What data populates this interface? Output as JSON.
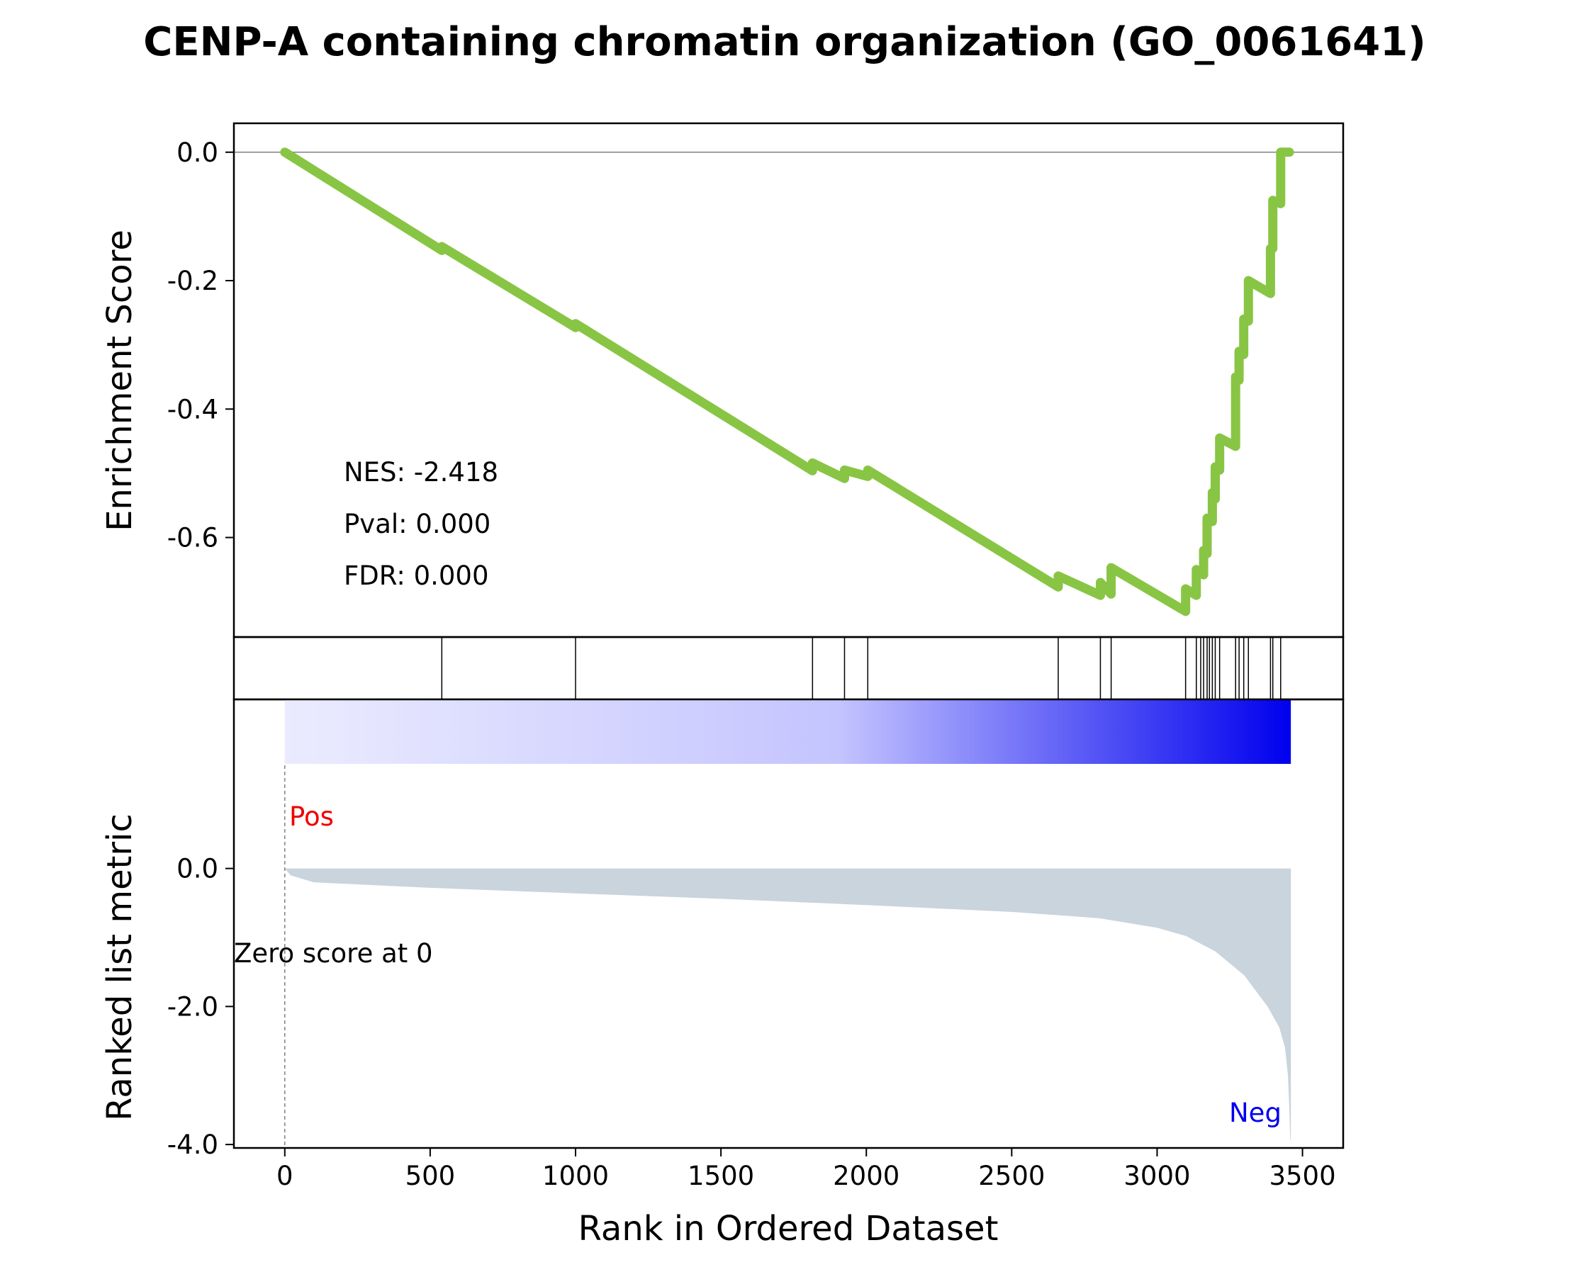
{
  "chart_data": {
    "type": "line",
    "title": "CENP-A containing chromatin organization (GO_0061641)",
    "xlabel": "Rank in Ordered Dataset",
    "xlim": [
      -175,
      3640
    ],
    "x_ticks": [
      0,
      500,
      1000,
      1500,
      2000,
      2500,
      3000,
      3500
    ],
    "x_tick_labels": [
      "0",
      "500",
      "1000",
      "1500",
      "2000",
      "2500",
      "3000",
      "3500"
    ],
    "n_genes": 3460,
    "enrichment": {
      "ylabel": "Enrichment Score",
      "ylim": [
        -0.755,
        0.045
      ],
      "y_ticks": [
        0.0,
        -0.2,
        -0.4,
        -0.6
      ],
      "y_tick_labels": [
        "0.0",
        "-0.2",
        "-0.4",
        "-0.6"
      ],
      "line_color": "#88c544",
      "stats": [
        "NES: -2.418",
        "Pval: 0.000",
        "FDR: 0.000"
      ],
      "running_es": [
        [
          0,
          0.0
        ],
        [
          540,
          -0.153
        ],
        [
          540,
          -0.147
        ],
        [
          1000,
          -0.273
        ],
        [
          1000,
          -0.267
        ],
        [
          1815,
          -0.496
        ],
        [
          1815,
          -0.484
        ],
        [
          1925,
          -0.508
        ],
        [
          1925,
          -0.495
        ],
        [
          2005,
          -0.505
        ],
        [
          2005,
          -0.495
        ],
        [
          2660,
          -0.677
        ],
        [
          2660,
          -0.66
        ],
        [
          2805,
          -0.69
        ],
        [
          2805,
          -0.67
        ],
        [
          2842,
          -0.688
        ],
        [
          2842,
          -0.647
        ],
        [
          3098,
          -0.715
        ],
        [
          3098,
          -0.68
        ],
        [
          3135,
          -0.69
        ],
        [
          3135,
          -0.65
        ],
        [
          3160,
          -0.658
        ],
        [
          3160,
          -0.62
        ],
        [
          3172,
          -0.625
        ],
        [
          3172,
          -0.57
        ],
        [
          3190,
          -0.575
        ],
        [
          3190,
          -0.53
        ],
        [
          3200,
          -0.54
        ],
        [
          3200,
          -0.49
        ],
        [
          3215,
          -0.495
        ],
        [
          3215,
          -0.445
        ],
        [
          3270,
          -0.458
        ],
        [
          3270,
          -0.35
        ],
        [
          3282,
          -0.355
        ],
        [
          3282,
          -0.31
        ],
        [
          3298,
          -0.315
        ],
        [
          3298,
          -0.26
        ],
        [
          3314,
          -0.263
        ],
        [
          3314,
          -0.2
        ],
        [
          3390,
          -0.22
        ],
        [
          3390,
          -0.15
        ],
        [
          3398,
          -0.15
        ],
        [
          3398,
          -0.075
        ],
        [
          3425,
          -0.08
        ],
        [
          3425,
          0.0
        ],
        [
          3455,
          0.0
        ]
      ]
    },
    "hits": [
      540,
      1000,
      1815,
      1925,
      2005,
      2660,
      2805,
      2842,
      3098,
      3135,
      3150,
      3160,
      3172,
      3180,
      3190,
      3200,
      3215,
      3270,
      3282,
      3298,
      3314,
      3390,
      3398,
      3425
    ],
    "metric": {
      "ylabel": "Ranked list metric",
      "ylim": [
        -4.05,
        2.45
      ],
      "y_ticks": [
        0.0,
        -2.0,
        -4.0
      ],
      "y_tick_labels": [
        "0.0",
        "-2.0",
        "-4.0"
      ],
      "fill_color": "#c9d4dc",
      "curve": [
        [
          0,
          0.0
        ],
        [
          20,
          -0.1
        ],
        [
          100,
          -0.2
        ],
        [
          500,
          -0.28
        ],
        [
          1000,
          -0.36
        ],
        [
          1500,
          -0.44
        ],
        [
          2000,
          -0.53
        ],
        [
          2500,
          -0.63
        ],
        [
          2800,
          -0.72
        ],
        [
          3000,
          -0.86
        ],
        [
          3100,
          -0.98
        ],
        [
          3200,
          -1.2
        ],
        [
          3300,
          -1.55
        ],
        [
          3380,
          -2.0
        ],
        [
          3420,
          -2.3
        ],
        [
          3440,
          -2.6
        ],
        [
          3450,
          -3.0
        ],
        [
          3455,
          -3.5
        ],
        [
          3458,
          -3.93
        ],
        [
          3460,
          -3.93
        ],
        [
          3460,
          0.0
        ]
      ],
      "heat_low": "#ebebff",
      "heat_high": "#0000ee",
      "pos_label": "Pos",
      "neg_label": "Neg",
      "pos_color": "#ee0000",
      "neg_color": "#0000ee",
      "zero_label": "Zero score at 0",
      "zero_rank": 0
    }
  }
}
